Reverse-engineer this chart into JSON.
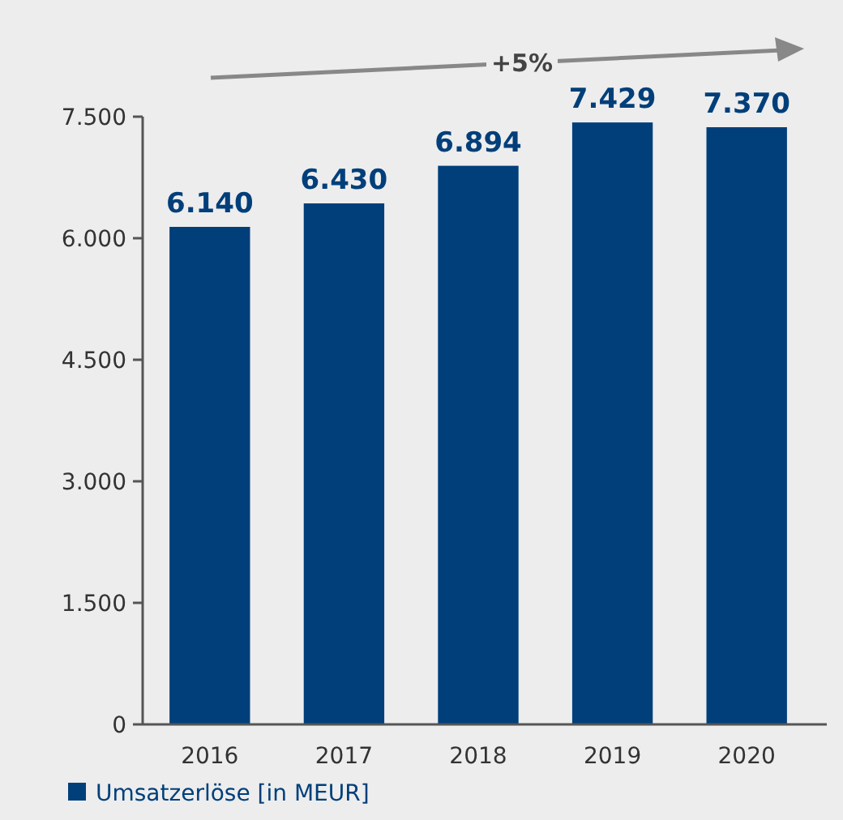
{
  "chart_data": {
    "type": "bar",
    "categories": [
      "2016",
      "2017",
      "2018",
      "2019",
      "2020"
    ],
    "series": [
      {
        "name": "Umsatzerlöse [in MEUR]",
        "color": "#003f7a",
        "values": [
          6140,
          6430,
          6894,
          7429,
          7370
        ]
      }
    ],
    "value_labels": [
      "6.140",
      "6.430",
      "6.894",
      "7.429",
      "7.370"
    ],
    "ylim": [
      0,
      7500
    ],
    "yticks": [
      {
        "value": 0,
        "label": "0"
      },
      {
        "value": 1500,
        "label": "1.500"
      },
      {
        "value": 3000,
        "label": "3.000"
      },
      {
        "value": 4500,
        "label": "4.500"
      },
      {
        "value": 6000,
        "label": "6.000"
      },
      {
        "value": 7500,
        "label": "7.500"
      }
    ],
    "annotations": [
      "+5%"
    ],
    "grid": false,
    "legend": "bottom left"
  }
}
